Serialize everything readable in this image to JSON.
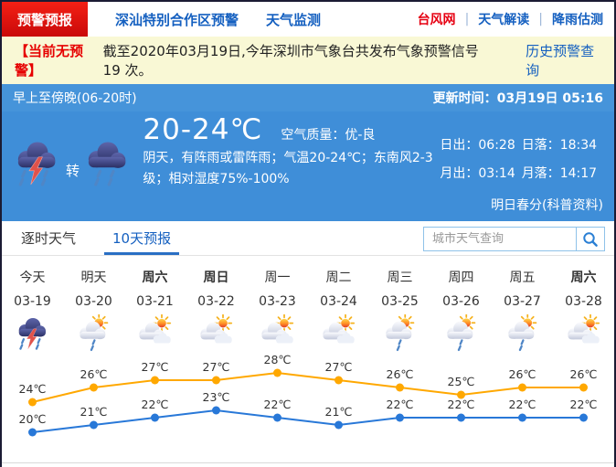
{
  "nav": {
    "tabs": [
      {
        "label": "预警预报",
        "active": true
      },
      {
        "label": "深汕特别合作区预警",
        "active": false
      },
      {
        "label": "天气监测",
        "active": false
      }
    ],
    "links": [
      {
        "label": "台风网"
      },
      {
        "label": "天气解读"
      },
      {
        "label": "降雨估测"
      }
    ],
    "separator": "|"
  },
  "notice": {
    "badge": "【当前无预警】",
    "text": "截至2020年03月19日,今年深圳市气象台共发布气象预警信号 19 次。",
    "link": "历史预警查询"
  },
  "current": {
    "period": "早上至傍晚(06-20时)",
    "update_label": "更新时间：",
    "update_time": "03月19日 05:16",
    "icon_from": "thunderstorm-rain-icon",
    "transition": "转",
    "icon_to": "rain-icon",
    "temp_range": "20-24℃",
    "aqi_label": "空气质量：",
    "aqi_value": "优-良",
    "description": "阴天，有阵雨或雷阵雨；气温20-24℃；东南风2-3级；相对湿度75%-100%",
    "sun": [
      {
        "label": "日出：",
        "value": "06:28"
      },
      {
        "label": "日落：",
        "value": "18:34"
      },
      {
        "label": "月出：",
        "value": "03:14"
      },
      {
        "label": "月落：",
        "value": "14:17"
      }
    ],
    "festival": "明日春分(科普资料)"
  },
  "view_tabs": [
    {
      "label": "逐时天气",
      "active": false
    },
    {
      "label": "10天预报",
      "active": true
    }
  ],
  "search": {
    "placeholder": "城市天气查询",
    "icon": "search-icon"
  },
  "forecast": {
    "days": [
      {
        "day": "今天",
        "date": "03-19",
        "icon": "thunderstorm-rain-icon",
        "bold": false
      },
      {
        "day": "明天",
        "date": "03-20",
        "icon": "sun-shower-icon",
        "bold": false
      },
      {
        "day": "周六",
        "date": "03-21",
        "icon": "partly-cloudy-icon",
        "bold": true
      },
      {
        "day": "周日",
        "date": "03-22",
        "icon": "partly-cloudy-icon",
        "bold": true
      },
      {
        "day": "周一",
        "date": "03-23",
        "icon": "partly-cloudy-icon",
        "bold": false
      },
      {
        "day": "周二",
        "date": "03-24",
        "icon": "partly-cloudy-icon",
        "bold": false
      },
      {
        "day": "周三",
        "date": "03-25",
        "icon": "sun-shower-icon",
        "bold": false
      },
      {
        "day": "周四",
        "date": "03-26",
        "icon": "sun-shower-icon",
        "bold": false
      },
      {
        "day": "周五",
        "date": "03-27",
        "icon": "sun-shower-icon",
        "bold": false
      },
      {
        "day": "周六",
        "date": "03-28",
        "icon": "partly-cloudy-icon",
        "bold": true
      }
    ]
  },
  "chart_data": {
    "type": "line",
    "categories": [
      "03-19",
      "03-20",
      "03-21",
      "03-22",
      "03-23",
      "03-24",
      "03-25",
      "03-26",
      "03-27",
      "03-28"
    ],
    "series": [
      {
        "name": "high",
        "color": "#ffa800",
        "values": [
          24,
          26,
          27,
          27,
          28,
          27,
          26,
          25,
          26,
          26
        ]
      },
      {
        "name": "low",
        "color": "#2878d8",
        "values": [
          20,
          21,
          22,
          23,
          22,
          21,
          22,
          22,
          22,
          22
        ]
      }
    ],
    "unit": "℃",
    "grid": false,
    "legend": "none",
    "label_color": "#333333"
  },
  "colors": {
    "brand_red": "#e60012",
    "link_blue": "#1560c0",
    "panel_blue": "#3f8ed8",
    "notice_bg": "#f9f8d5",
    "high_line": "#ffa800",
    "low_line": "#2878d8"
  }
}
